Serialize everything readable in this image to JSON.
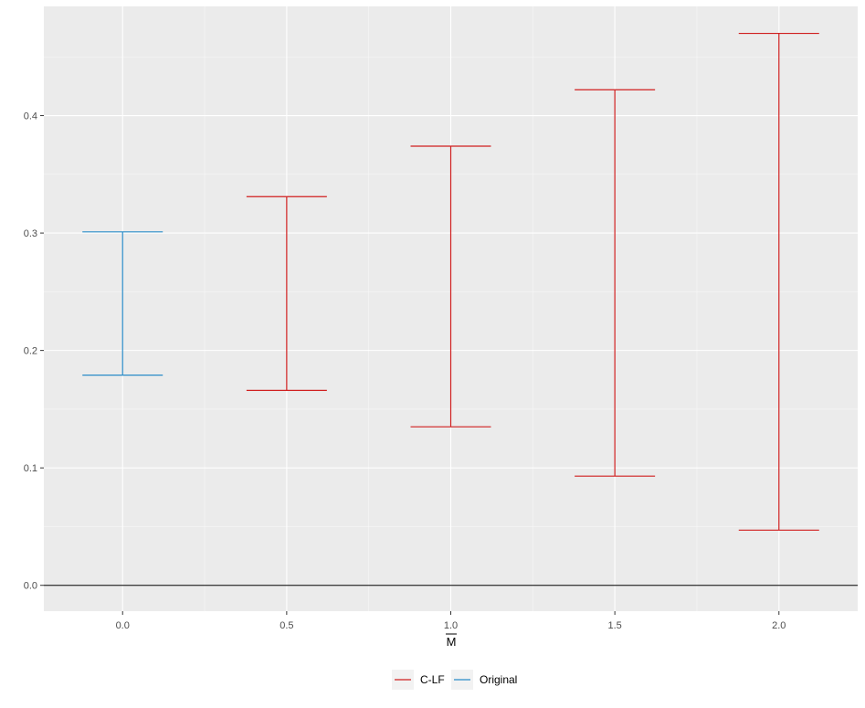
{
  "chart_data": {
    "type": "errorbar",
    "xlabel": "M",
    "xlabel_overline": true,
    "ylabel": "",
    "title": "",
    "x_ticks": [
      "0.0",
      "0.5",
      "1.0",
      "1.5",
      "2.0"
    ],
    "y_ticks": [
      "0.0",
      "0.1",
      "0.2",
      "0.3",
      "0.4"
    ],
    "xlim": [
      -0.24,
      2.24
    ],
    "ylim": [
      -0.022,
      0.493
    ],
    "reference_line_y": 0,
    "grid": true,
    "legend": {
      "position": "bottom",
      "entries": [
        "C-LF",
        "Original"
      ]
    },
    "series": [
      {
        "name": "C-LF",
        "color": "#d01f1f",
        "points": [
          {
            "x": 0.5,
            "lower": 0.166,
            "upper": 0.331
          },
          {
            "x": 1.0,
            "lower": 0.135,
            "upper": 0.374
          },
          {
            "x": 1.5,
            "lower": 0.093,
            "upper": 0.422
          },
          {
            "x": 2.0,
            "lower": 0.047,
            "upper": 0.47
          }
        ]
      },
      {
        "name": "Original",
        "color": "#2a8cc8",
        "points": [
          {
            "x": 0.0,
            "lower": 0.179,
            "upper": 0.301
          }
        ]
      }
    ]
  }
}
